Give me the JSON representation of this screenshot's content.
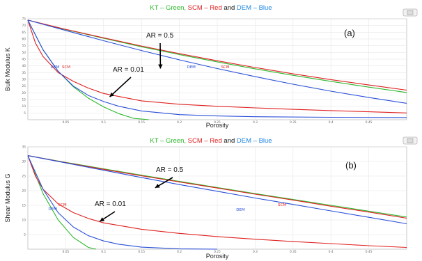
{
  "colors": {
    "kt": "#2db82d",
    "scm": "#e02020",
    "dem": "#2a4fd8",
    "title_blue": "#1f86e0",
    "grid": "#e6e6e6",
    "frame": "#bdbdbd"
  },
  "chart_data": [
    {
      "type": "line",
      "panel": "(a)",
      "title": {
        "kt": "KT",
        "kt_color_word": "Green",
        "scm": "SCM",
        "scm_color_word": "Red",
        "connector": "and",
        "dem": "DEM",
        "dem_color_word": "Blue",
        "dash": "–"
      },
      "xlabel": "Porosity",
      "ylabel": "Bulk Modulus K",
      "xlim": [
        0,
        0.5
      ],
      "ylim": [
        0,
        75
      ],
      "x_ticks": [
        "0.05",
        "0.1",
        "0.15",
        "0.2",
        "0.25",
        "0.3",
        "0.35",
        "0.4",
        "0.45"
      ],
      "y_ticks": [
        "5",
        "10",
        "15",
        "20",
        "25",
        "30",
        "35",
        "40",
        "45",
        "50",
        "55",
        "60",
        "65",
        "70",
        "75"
      ],
      "annotations": [
        {
          "text": "AR = 0.5",
          "target_x": 0.175,
          "target_y": 38
        },
        {
          "text": "AR = 0.01",
          "target_x": 0.108,
          "target_y": 17
        }
      ],
      "curve_labels": [
        {
          "text": "DEM",
          "x": 0.03,
          "y": 31,
          "color": "dem"
        },
        {
          "text": "SCM",
          "x": 0.045,
          "y": 31,
          "color": "scm"
        },
        {
          "text": "DEM",
          "x": 0.21,
          "y": 31,
          "color": "dem"
        },
        {
          "text": "SCM",
          "x": 0.255,
          "y": 31,
          "color": "scm"
        }
      ],
      "series": [
        {
          "name": "KT",
          "aspect_ratio": "0.5",
          "color": "kt",
          "x": [
            0,
            0.05,
            0.1,
            0.15,
            0.2,
            0.25,
            0.3,
            0.35,
            0.4,
            0.45,
            0.5
          ],
          "y": [
            74,
            67,
            60.5,
            54.2,
            48.4,
            43.0,
            37.8,
            33.0,
            28.5,
            24.2,
            20.2
          ]
        },
        {
          "name": "SCM",
          "aspect_ratio": "0.5",
          "color": "scm",
          "x": [
            0,
            0.05,
            0.1,
            0.15,
            0.2,
            0.25,
            0.3,
            0.35,
            0.4,
            0.45,
            0.5
          ],
          "y": [
            74,
            67.2,
            60.9,
            54.8,
            49.1,
            43.8,
            38.8,
            34.1,
            29.8,
            25.8,
            22.0
          ]
        },
        {
          "name": "DEM",
          "aspect_ratio": "0.5",
          "color": "dem",
          "x": [
            0,
            0.05,
            0.1,
            0.15,
            0.2,
            0.25,
            0.3,
            0.35,
            0.4,
            0.45,
            0.5
          ],
          "y": [
            74,
            66.3,
            58.7,
            51.4,
            44.5,
            38.0,
            32.0,
            26.4,
            21.2,
            16.5,
            12.2
          ]
        },
        {
          "name": "KT",
          "aspect_ratio": "0.01",
          "color": "kt",
          "x": [
            0,
            0.02,
            0.04,
            0.06,
            0.08,
            0.1,
            0.12,
            0.14,
            0.16
          ],
          "y": [
            74,
            52,
            36,
            24.5,
            16,
            9.5,
            4.5,
            1.0,
            0
          ]
        },
        {
          "name": "SCM",
          "aspect_ratio": "0.01",
          "color": "scm",
          "x": [
            0,
            0.01,
            0.02,
            0.04,
            0.06,
            0.08,
            0.1,
            0.15,
            0.2,
            0.25,
            0.3,
            0.35,
            0.4,
            0.45,
            0.5
          ],
          "y": [
            74,
            57,
            47,
            35,
            28.5,
            23.5,
            19.5,
            14.0,
            11.5,
            10.0,
            8.8,
            7.7,
            6.8,
            5.9,
            5.0
          ]
        },
        {
          "name": "DEM",
          "aspect_ratio": "0.01",
          "color": "dem",
          "x": [
            0,
            0.02,
            0.04,
            0.06,
            0.08,
            0.1,
            0.12,
            0.15,
            0.2,
            0.25,
            0.3,
            0.4,
            0.5
          ],
          "y": [
            74,
            52,
            36,
            25,
            18,
            13.5,
            10,
            6.5,
            3.8,
            2.8,
            2.2,
            1.8,
            1.6
          ]
        }
      ]
    },
    {
      "type": "line",
      "panel": "(b)",
      "title": {
        "kt": "KT",
        "kt_color_word": "Green",
        "scm": "SCM",
        "scm_color_word": "Red",
        "connector": "and",
        "dem": "DEM",
        "dem_color_word": "Blue",
        "dash": "–"
      },
      "xlabel": "Porosity",
      "ylabel": "Shear Modulus G",
      "xlim": [
        0,
        0.5
      ],
      "ylim": [
        0,
        35
      ],
      "x_ticks": [
        "0.05",
        "0.1",
        "0.15",
        "0.2",
        "0.25",
        "0.3",
        "0.35",
        "0.4",
        "0.45"
      ],
      "y_ticks": [
        "5",
        "10",
        "15",
        "20",
        "25",
        "30",
        "35"
      ],
      "annotations": [
        {
          "text": "AR = 0.5",
          "target_x": 0.168,
          "target_y": 21
        },
        {
          "text": "AR = 0.01",
          "target_x": 0.095,
          "target_y": 9.5
        }
      ],
      "curve_labels": [
        {
          "text": "SCM",
          "x": 0.04,
          "y": 15,
          "color": "scm"
        },
        {
          "text": "DEM",
          "x": 0.027,
          "y": 13.8,
          "color": "dem"
        },
        {
          "text": "DEM",
          "x": 0.275,
          "y": 14,
          "color": "dem"
        },
        {
          "text": "SCM",
          "x": 0.33,
          "y": 15,
          "color": "scm"
        }
      ],
      "series": [
        {
          "name": "KT",
          "aspect_ratio": "0.5",
          "color": "kt",
          "x": [
            0,
            0.05,
            0.1,
            0.15,
            0.2,
            0.25,
            0.3,
            0.35,
            0.4,
            0.45,
            0.5
          ],
          "y": [
            32,
            29.7,
            27.5,
            25.3,
            23.2,
            21.1,
            19.0,
            17.0,
            15.0,
            13.0,
            11.0
          ]
        },
        {
          "name": "SCM",
          "aspect_ratio": "0.5",
          "color": "scm",
          "x": [
            0,
            0.05,
            0.1,
            0.15,
            0.2,
            0.25,
            0.3,
            0.35,
            0.4,
            0.45,
            0.5
          ],
          "y": [
            32,
            29.6,
            27.3,
            25.1,
            23.0,
            20.9,
            18.8,
            16.8,
            14.7,
            12.7,
            10.6
          ]
        },
        {
          "name": "DEM",
          "aspect_ratio": "0.5",
          "color": "dem",
          "x": [
            0,
            0.05,
            0.1,
            0.15,
            0.2,
            0.25,
            0.3,
            0.35,
            0.4,
            0.45,
            0.5
          ],
          "y": [
            32,
            29.5,
            27.0,
            24.5,
            22.1,
            19.8,
            17.5,
            15.3,
            13.1,
            10.9,
            8.7
          ]
        },
        {
          "name": "KT",
          "aspect_ratio": "0.01",
          "color": "kt",
          "x": [
            0,
            0.02,
            0.04,
            0.06,
            0.08,
            0.09
          ],
          "y": [
            32,
            19,
            10,
            4.0,
            0.6,
            0
          ]
        },
        {
          "name": "SCM",
          "aspect_ratio": "0.01",
          "color": "scm",
          "x": [
            0,
            0.01,
            0.02,
            0.04,
            0.06,
            0.08,
            0.1,
            0.15,
            0.2,
            0.25,
            0.3,
            0.35,
            0.4,
            0.45,
            0.5
          ],
          "y": [
            32,
            25,
            20.5,
            15.5,
            12.5,
            10.5,
            9.0,
            6.8,
            5.4,
            4.3,
            3.4,
            2.6,
            1.9,
            1.2,
            0.6
          ]
        },
        {
          "name": "DEM",
          "aspect_ratio": "0.01",
          "color": "dem",
          "x": [
            0,
            0.02,
            0.04,
            0.06,
            0.08,
            0.1,
            0.12,
            0.15,
            0.2,
            0.25
          ],
          "y": [
            32,
            20.5,
            12.5,
            7.6,
            4.6,
            2.8,
            1.7,
            0.7,
            0.1,
            0
          ]
        }
      ]
    }
  ]
}
